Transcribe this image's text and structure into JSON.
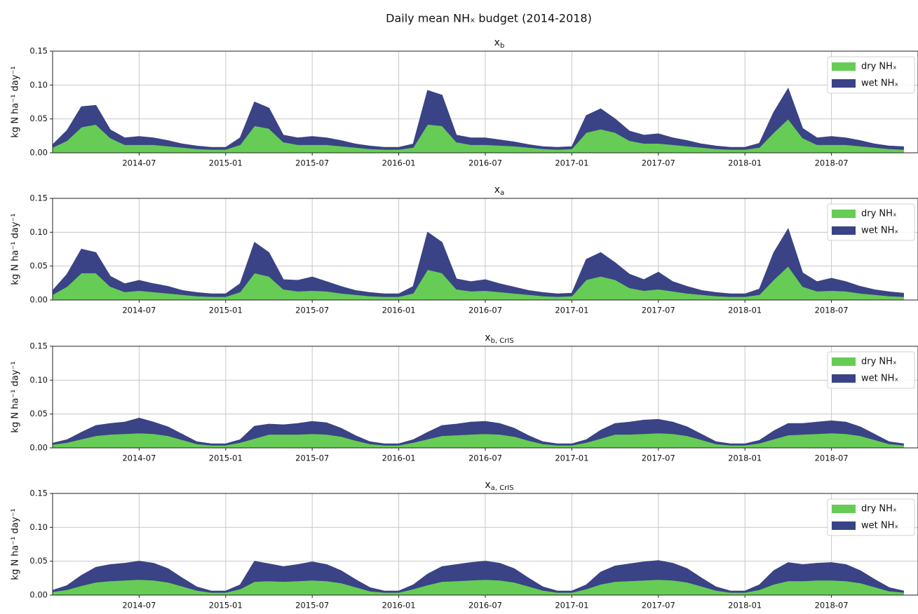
{
  "title": "Daily mean NHₓ budget (2014-2018)",
  "chart_data": [
    {
      "type": "area",
      "stacked": true,
      "title": "x",
      "title_sub": "b",
      "ylabel": "kg N ha⁻¹ day⁻¹",
      "ylim": [
        0,
        0.15
      ],
      "yticks": [
        {
          "value": 0,
          "label": "0.00"
        },
        {
          "value": 0.05,
          "label": "0.05"
        },
        {
          "value": 0.1,
          "label": "0.10"
        },
        {
          "value": 0.15,
          "label": "0.15"
        }
      ],
      "xlim": [
        "2014-01",
        "2019-01"
      ],
      "xticks": [
        "2014-07",
        "2015-01",
        "2015-07",
        "2016-01",
        "2016-07",
        "2017-01",
        "2017-07",
        "2018-01",
        "2018-07"
      ],
      "grid": true,
      "legend": "upper right",
      "x": [
        "2014-01",
        "2014-02",
        "2014-03",
        "2014-04",
        "2014-05",
        "2014-06",
        "2014-07",
        "2014-08",
        "2014-09",
        "2014-10",
        "2014-11",
        "2014-12",
        "2015-01",
        "2015-02",
        "2015-03",
        "2015-04",
        "2015-05",
        "2015-06",
        "2015-07",
        "2015-08",
        "2015-09",
        "2015-10",
        "2015-11",
        "2015-12",
        "2016-01",
        "2016-02",
        "2016-03",
        "2016-04",
        "2016-05",
        "2016-06",
        "2016-07",
        "2016-08",
        "2016-09",
        "2016-10",
        "2016-11",
        "2016-12",
        "2017-01",
        "2017-02",
        "2017-03",
        "2017-04",
        "2017-05",
        "2017-06",
        "2017-07",
        "2017-08",
        "2017-09",
        "2017-10",
        "2017-11",
        "2017-12",
        "2018-01",
        "2018-02",
        "2018-03",
        "2018-04",
        "2018-05",
        "2018-06",
        "2018-07",
        "2018-08",
        "2018-09",
        "2018-10",
        "2018-11",
        "2018-12"
      ],
      "series": [
        {
          "name": "dry NHₓ",
          "color": "#66cc55",
          "values": [
            0.008,
            0.018,
            0.038,
            0.042,
            0.022,
            0.012,
            0.012,
            0.012,
            0.01,
            0.008,
            0.006,
            0.005,
            0.005,
            0.012,
            0.04,
            0.036,
            0.016,
            0.012,
            0.012,
            0.012,
            0.01,
            0.008,
            0.006,
            0.005,
            0.005,
            0.008,
            0.042,
            0.04,
            0.016,
            0.012,
            0.012,
            0.011,
            0.01,
            0.008,
            0.006,
            0.005,
            0.006,
            0.03,
            0.035,
            0.03,
            0.018,
            0.014,
            0.014,
            0.012,
            0.01,
            0.008,
            0.006,
            0.005,
            0.005,
            0.008,
            0.03,
            0.05,
            0.022,
            0.012,
            0.012,
            0.012,
            0.01,
            0.008,
            0.006,
            0.005
          ]
        },
        {
          "name": "wet NHₓ",
          "color": "#3a4385",
          "values": [
            0.004,
            0.015,
            0.03,
            0.028,
            0.012,
            0.01,
            0.012,
            0.01,
            0.008,
            0.005,
            0.004,
            0.003,
            0.003,
            0.01,
            0.035,
            0.03,
            0.01,
            0.01,
            0.012,
            0.01,
            0.008,
            0.005,
            0.004,
            0.003,
            0.003,
            0.005,
            0.05,
            0.045,
            0.01,
            0.01,
            0.01,
            0.008,
            0.006,
            0.004,
            0.003,
            0.003,
            0.003,
            0.025,
            0.03,
            0.02,
            0.014,
            0.012,
            0.014,
            0.01,
            0.008,
            0.005,
            0.004,
            0.003,
            0.003,
            0.006,
            0.03,
            0.045,
            0.014,
            0.01,
            0.012,
            0.01,
            0.008,
            0.005,
            0.004,
            0.004
          ]
        }
      ]
    },
    {
      "type": "area",
      "stacked": true,
      "title": "x",
      "title_sub": "a",
      "ylabel": "kg N ha⁻¹ day⁻¹",
      "ylim": [
        0,
        0.15
      ],
      "yticks": [
        {
          "value": 0,
          "label": "0.00"
        },
        {
          "value": 0.05,
          "label": "0.05"
        },
        {
          "value": 0.1,
          "label": "0.10"
        },
        {
          "value": 0.15,
          "label": "0.15"
        }
      ],
      "xlim": [
        "2014-01",
        "2019-01"
      ],
      "xticks": [
        "2014-07",
        "2015-01",
        "2015-07",
        "2016-01",
        "2016-07",
        "2017-01",
        "2017-07",
        "2018-01",
        "2018-07"
      ],
      "grid": true,
      "legend": "upper right",
      "x": [
        "2014-01",
        "2014-02",
        "2014-03",
        "2014-04",
        "2014-05",
        "2014-06",
        "2014-07",
        "2014-08",
        "2014-09",
        "2014-10",
        "2014-11",
        "2014-12",
        "2015-01",
        "2015-02",
        "2015-03",
        "2015-04",
        "2015-05",
        "2015-06",
        "2015-07",
        "2015-08",
        "2015-09",
        "2015-10",
        "2015-11",
        "2015-12",
        "2016-01",
        "2016-02",
        "2016-03",
        "2016-04",
        "2016-05",
        "2016-06",
        "2016-07",
        "2016-08",
        "2016-09",
        "2016-10",
        "2016-11",
        "2016-12",
        "2017-01",
        "2017-02",
        "2017-03",
        "2017-04",
        "2017-05",
        "2017-06",
        "2017-07",
        "2017-08",
        "2017-09",
        "2017-10",
        "2017-11",
        "2017-12",
        "2018-01",
        "2018-02",
        "2018-03",
        "2018-04",
        "2018-05",
        "2018-06",
        "2018-07",
        "2018-08",
        "2018-09",
        "2018-10",
        "2018-11",
        "2018-12"
      ],
      "series": [
        {
          "name": "dry NHₓ",
          "color": "#66cc55",
          "values": [
            0.008,
            0.02,
            0.04,
            0.04,
            0.02,
            0.012,
            0.014,
            0.012,
            0.01,
            0.008,
            0.006,
            0.005,
            0.005,
            0.012,
            0.04,
            0.035,
            0.016,
            0.013,
            0.014,
            0.013,
            0.01,
            0.008,
            0.006,
            0.005,
            0.005,
            0.01,
            0.045,
            0.04,
            0.016,
            0.013,
            0.014,
            0.012,
            0.01,
            0.008,
            0.006,
            0.005,
            0.006,
            0.03,
            0.035,
            0.03,
            0.018,
            0.014,
            0.016,
            0.013,
            0.01,
            0.008,
            0.006,
            0.005,
            0.005,
            0.008,
            0.03,
            0.05,
            0.02,
            0.013,
            0.014,
            0.013,
            0.01,
            0.008,
            0.006,
            0.005
          ]
        },
        {
          "name": "wet NHₓ",
          "color": "#3a4385",
          "values": [
            0.006,
            0.018,
            0.035,
            0.03,
            0.015,
            0.012,
            0.015,
            0.012,
            0.01,
            0.006,
            0.005,
            0.004,
            0.004,
            0.012,
            0.045,
            0.035,
            0.014,
            0.016,
            0.02,
            0.014,
            0.01,
            0.006,
            0.005,
            0.004,
            0.004,
            0.01,
            0.055,
            0.045,
            0.015,
            0.014,
            0.016,
            0.012,
            0.009,
            0.006,
            0.005,
            0.004,
            0.004,
            0.03,
            0.035,
            0.025,
            0.02,
            0.016,
            0.025,
            0.014,
            0.01,
            0.006,
            0.005,
            0.004,
            0.004,
            0.008,
            0.04,
            0.055,
            0.02,
            0.014,
            0.018,
            0.014,
            0.01,
            0.007,
            0.006,
            0.005
          ]
        }
      ]
    },
    {
      "type": "area",
      "stacked": true,
      "title": "x",
      "title_sub": "b, CrIS",
      "ylabel": "kg N ha⁻¹ day⁻¹",
      "ylim": [
        0,
        0.15
      ],
      "yticks": [
        {
          "value": 0,
          "label": "0.00"
        },
        {
          "value": 0.05,
          "label": "0.05"
        },
        {
          "value": 0.1,
          "label": "0.10"
        },
        {
          "value": 0.15,
          "label": "0.15"
        }
      ],
      "xlim": [
        "2014-01",
        "2019-01"
      ],
      "xticks": [
        "2014-07",
        "2015-01",
        "2015-07",
        "2016-01",
        "2016-07",
        "2017-01",
        "2017-07",
        "2018-01",
        "2018-07"
      ],
      "grid": true,
      "legend": "upper right",
      "x": [
        "2014-01",
        "2014-02",
        "2014-03",
        "2014-04",
        "2014-05",
        "2014-06",
        "2014-07",
        "2014-08",
        "2014-09",
        "2014-10",
        "2014-11",
        "2014-12",
        "2015-01",
        "2015-02",
        "2015-03",
        "2015-04",
        "2015-05",
        "2015-06",
        "2015-07",
        "2015-08",
        "2015-09",
        "2015-10",
        "2015-11",
        "2015-12",
        "2016-01",
        "2016-02",
        "2016-03",
        "2016-04",
        "2016-05",
        "2016-06",
        "2016-07",
        "2016-08",
        "2016-09",
        "2016-10",
        "2016-11",
        "2016-12",
        "2017-01",
        "2017-02",
        "2017-03",
        "2017-04",
        "2017-05",
        "2017-06",
        "2017-07",
        "2017-08",
        "2017-09",
        "2017-10",
        "2017-11",
        "2017-12",
        "2018-01",
        "2018-02",
        "2018-03",
        "2018-04",
        "2018-05",
        "2018-06",
        "2018-07",
        "2018-08",
        "2018-09",
        "2018-10",
        "2018-11",
        "2018-12"
      ],
      "series": [
        {
          "name": "dry NHₓ",
          "color": "#66cc55",
          "values": [
            0.005,
            0.008,
            0.013,
            0.018,
            0.02,
            0.021,
            0.022,
            0.021,
            0.018,
            0.012,
            0.006,
            0.004,
            0.004,
            0.008,
            0.014,
            0.02,
            0.02,
            0.02,
            0.021,
            0.02,
            0.017,
            0.011,
            0.006,
            0.004,
            0.004,
            0.008,
            0.013,
            0.018,
            0.019,
            0.02,
            0.021,
            0.02,
            0.017,
            0.011,
            0.006,
            0.004,
            0.004,
            0.008,
            0.014,
            0.02,
            0.02,
            0.021,
            0.022,
            0.021,
            0.018,
            0.012,
            0.006,
            0.004,
            0.004,
            0.007,
            0.013,
            0.019,
            0.02,
            0.021,
            0.022,
            0.021,
            0.018,
            0.012,
            0.006,
            0.004
          ]
        },
        {
          "name": "wet NHₓ",
          "color": "#3a4385",
          "values": [
            0.002,
            0.004,
            0.01,
            0.015,
            0.016,
            0.017,
            0.022,
            0.017,
            0.013,
            0.008,
            0.003,
            0.002,
            0.002,
            0.004,
            0.018,
            0.015,
            0.014,
            0.016,
            0.018,
            0.017,
            0.012,
            0.007,
            0.003,
            0.002,
            0.002,
            0.004,
            0.01,
            0.015,
            0.016,
            0.018,
            0.018,
            0.016,
            0.012,
            0.007,
            0.003,
            0.002,
            0.002,
            0.004,
            0.012,
            0.016,
            0.018,
            0.02,
            0.02,
            0.017,
            0.013,
            0.008,
            0.003,
            0.002,
            0.002,
            0.004,
            0.012,
            0.017,
            0.016,
            0.017,
            0.018,
            0.017,
            0.013,
            0.008,
            0.003,
            0.002
          ]
        }
      ]
    },
    {
      "type": "area",
      "stacked": true,
      "title": "x",
      "title_sub": "a, CrIS",
      "ylabel": "kg N ha⁻¹ day⁻¹",
      "ylim": [
        0,
        0.15
      ],
      "yticks": [
        {
          "value": 0,
          "label": "0.00"
        },
        {
          "value": 0.05,
          "label": "0.05"
        },
        {
          "value": 0.1,
          "label": "0.10"
        },
        {
          "value": 0.15,
          "label": "0.15"
        }
      ],
      "xlim": [
        "2014-01",
        "2019-01"
      ],
      "xticks": [
        "2014-07",
        "2015-01",
        "2015-07",
        "2016-01",
        "2016-07",
        "2017-01",
        "2017-07",
        "2018-01",
        "2018-07"
      ],
      "grid": true,
      "legend": "upper right",
      "x": [
        "2014-01",
        "2014-02",
        "2014-03",
        "2014-04",
        "2014-05",
        "2014-06",
        "2014-07",
        "2014-08",
        "2014-09",
        "2014-10",
        "2014-11",
        "2014-12",
        "2015-01",
        "2015-02",
        "2015-03",
        "2015-04",
        "2015-05",
        "2015-06",
        "2015-07",
        "2015-08",
        "2015-09",
        "2015-10",
        "2015-11",
        "2015-12",
        "2016-01",
        "2016-02",
        "2016-03",
        "2016-04",
        "2016-05",
        "2016-06",
        "2016-07",
        "2016-08",
        "2016-09",
        "2016-10",
        "2016-11",
        "2016-12",
        "2017-01",
        "2017-02",
        "2017-03",
        "2017-04",
        "2017-05",
        "2017-06",
        "2017-07",
        "2017-08",
        "2017-09",
        "2017-10",
        "2017-11",
        "2017-12",
        "2018-01",
        "2018-02",
        "2018-03",
        "2018-04",
        "2018-05",
        "2018-06",
        "2018-07",
        "2018-08",
        "2018-09",
        "2018-10",
        "2018-11",
        "2018-12"
      ],
      "series": [
        {
          "name": "dry NHₓ",
          "color": "#66cc55",
          "values": [
            0.005,
            0.008,
            0.014,
            0.019,
            0.021,
            0.022,
            0.023,
            0.022,
            0.019,
            0.013,
            0.007,
            0.004,
            0.004,
            0.009,
            0.02,
            0.021,
            0.02,
            0.021,
            0.022,
            0.021,
            0.018,
            0.012,
            0.006,
            0.004,
            0.004,
            0.009,
            0.015,
            0.02,
            0.021,
            0.022,
            0.023,
            0.022,
            0.019,
            0.013,
            0.007,
            0.004,
            0.004,
            0.009,
            0.016,
            0.02,
            0.021,
            0.022,
            0.023,
            0.022,
            0.019,
            0.013,
            0.007,
            0.004,
            0.004,
            0.008,
            0.016,
            0.021,
            0.021,
            0.022,
            0.022,
            0.021,
            0.018,
            0.012,
            0.006,
            0.004
          ]
        },
        {
          "name": "wet NHₓ",
          "color": "#3a4385",
          "values": [
            0.002,
            0.006,
            0.015,
            0.022,
            0.024,
            0.025,
            0.027,
            0.025,
            0.02,
            0.012,
            0.005,
            0.002,
            0.002,
            0.006,
            0.03,
            0.025,
            0.022,
            0.024,
            0.027,
            0.024,
            0.018,
            0.011,
            0.005,
            0.002,
            0.002,
            0.006,
            0.016,
            0.022,
            0.024,
            0.026,
            0.027,
            0.025,
            0.02,
            0.012,
            0.005,
            0.002,
            0.002,
            0.006,
            0.018,
            0.023,
            0.025,
            0.027,
            0.028,
            0.025,
            0.02,
            0.012,
            0.005,
            0.002,
            0.002,
            0.007,
            0.02,
            0.027,
            0.024,
            0.025,
            0.026,
            0.024,
            0.018,
            0.011,
            0.005,
            0.002
          ]
        }
      ]
    }
  ]
}
